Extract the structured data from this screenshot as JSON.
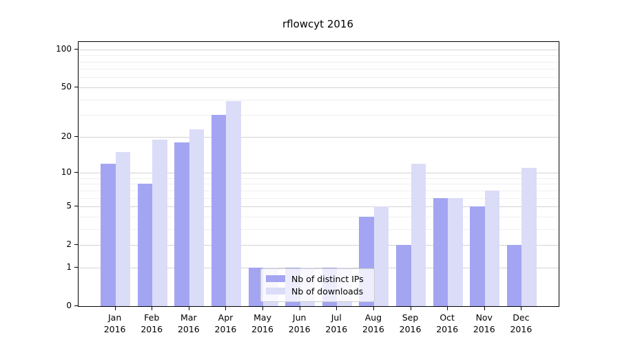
{
  "title": "rflowcyt 2016",
  "chart_data": {
    "type": "bar",
    "title": "rflowcyt 2016",
    "categories": [
      "Jan",
      "Feb",
      "Mar",
      "Apr",
      "May",
      "Jun",
      "Jul",
      "Aug",
      "Sep",
      "Oct",
      "Nov",
      "Dec"
    ],
    "year_label": "2016",
    "series": [
      {
        "name": "Nb of distinct IPs",
        "color": "#a3a5f2",
        "values": [
          12,
          8,
          18,
          30,
          1,
          1,
          1,
          4,
          2,
          6,
          5,
          2
        ]
      },
      {
        "name": "Nb of downloads",
        "color": "#dbdcf8",
        "values": [
          15,
          19,
          23,
          39,
          1,
          1,
          1,
          5,
          12,
          6,
          7,
          11
        ]
      }
    ],
    "y_axis": {
      "scale": "log1p",
      "tick_labels": [
        0,
        1,
        2,
        5,
        10,
        20,
        50,
        100
      ],
      "minor_gridlines": [
        3,
        4,
        6,
        7,
        8,
        9,
        30,
        40,
        60,
        70,
        80,
        90
      ],
      "range_max": 100
    },
    "legend_position": "inside-bottom-center",
    "grid": true
  },
  "colors": {
    "major_grid": "#d3d3d3",
    "minor_grid": "#efefef",
    "axis": "#000000",
    "background": "#ffffff"
  }
}
